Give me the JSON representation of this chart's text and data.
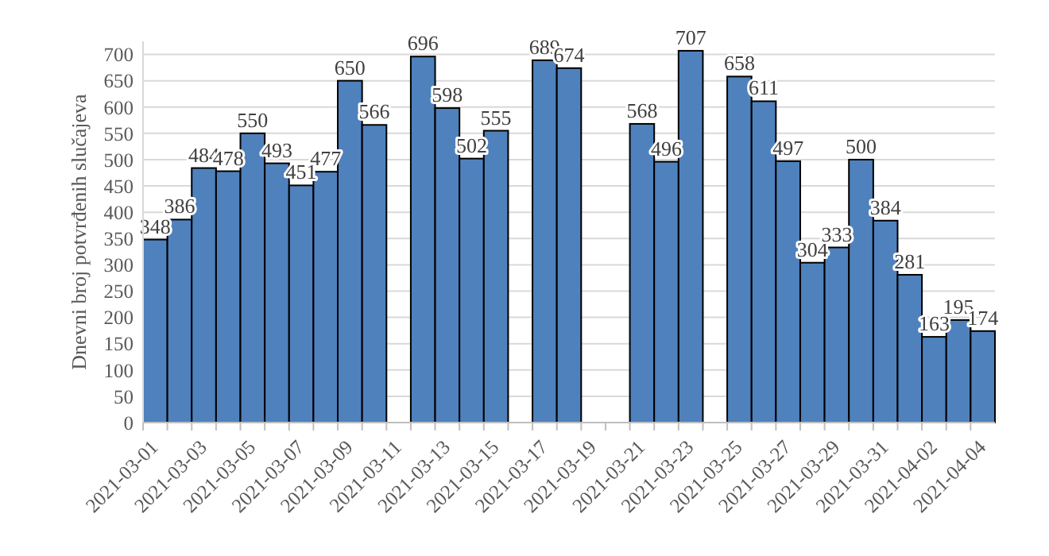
{
  "chart_data": {
    "type": "bar",
    "ylabel": "Dnevni broj potvrđenih slučajeva",
    "categories": [
      "2021-03-01",
      null,
      "2021-03-03",
      null,
      "2021-03-05",
      null,
      "2021-03-07",
      null,
      "2021-03-09",
      null,
      "2021-03-11",
      null,
      "2021-03-13",
      null,
      "2021-03-15",
      null,
      "2021-03-17",
      null,
      "2021-03-19",
      null,
      "2021-03-21",
      null,
      "2021-03-23",
      null,
      "2021-03-25",
      null,
      "2021-03-27",
      null,
      "2021-03-29",
      null,
      "2021-03-31",
      null,
      "2021-04-02",
      null,
      "2021-04-04"
    ],
    "values": [
      348,
      386,
      484,
      478,
      550,
      493,
      451,
      477,
      650,
      566,
      null,
      696,
      598,
      502,
      555,
      null,
      689,
      674,
      null,
      null,
      568,
      496,
      707,
      null,
      658,
      611,
      497,
      304,
      333,
      500,
      384,
      281,
      163,
      195,
      174
    ],
    "color": "#4f81bd",
    "ylim": [
      0,
      725
    ],
    "yticks": [
      0,
      50,
      100,
      150,
      200,
      250,
      300,
      350,
      400,
      450,
      500,
      550,
      600,
      650,
      700
    ],
    "grid": "y",
    "data_labels": true
  }
}
